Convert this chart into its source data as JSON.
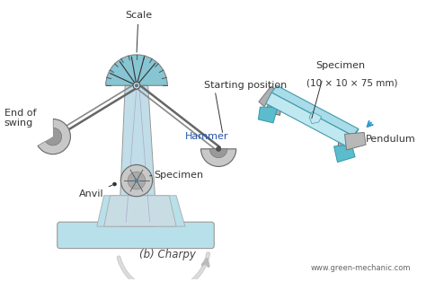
{
  "bg_color": "#ffffff",
  "light_blue": "#b8e0ea",
  "col_blue": "#c0dde8",
  "teal": "#7abfcf",
  "steel_gray": "#aaaaaa",
  "dark_gray": "#666666",
  "label_color": "#2255aa",
  "label_black": "#333333",
  "title": "(b) Charpy",
  "website": "www.green-mechanic.com",
  "scale_label": "Scale",
  "start_label": "Starting position",
  "hammer_label": "Hammer",
  "swing_label": "End of\nswing",
  "anvil_label": "Anvil",
  "spec_label": "Specimen",
  "spec2_label": "Specimen",
  "spec_size": "(10 × 10 × 75 mm)",
  "pend_label": "Pendulum"
}
